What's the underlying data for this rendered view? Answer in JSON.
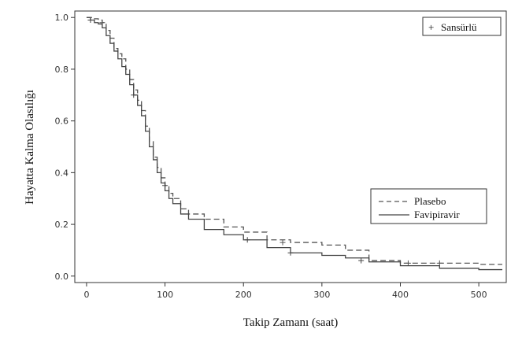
{
  "chart_data": {
    "type": "line",
    "xlabel": "Takip Zamanı (saat)",
    "ylabel": "Hayatta Kalma Olasılığı",
    "xlim": [
      -15,
      535
    ],
    "ylim": [
      -0.025,
      1.025
    ],
    "xticks": [
      0,
      100,
      200,
      300,
      400,
      500
    ],
    "xtick_labels": [
      "0",
      "100",
      "200",
      "300",
      "400",
      "500"
    ],
    "yticks": [
      0.0,
      0.2,
      0.4,
      0.6,
      0.8,
      1.0
    ],
    "ytick_labels": [
      "0.0",
      "0.2",
      "0.4",
      "0.6",
      "0.8",
      "1.0"
    ],
    "grid": false,
    "censor_legend": {
      "symbol": "+",
      "label": "Sansürlü",
      "position": "top-right"
    },
    "legend_position": "center-right",
    "series": [
      {
        "name": "Plasebo",
        "style": "dashed",
        "color": "#555555",
        "x": [
          0,
          5,
          10,
          15,
          20,
          25,
          30,
          35,
          40,
          45,
          50,
          55,
          60,
          65,
          70,
          75,
          80,
          85,
          90,
          95,
          100,
          105,
          110,
          120,
          130,
          150,
          175,
          200,
          230,
          260,
          300,
          330,
          360,
          400,
          450,
          500,
          530
        ],
        "y": [
          1.0,
          1.0,
          0.995,
          0.99,
          0.98,
          0.95,
          0.92,
          0.88,
          0.86,
          0.84,
          0.8,
          0.76,
          0.72,
          0.68,
          0.64,
          0.58,
          0.52,
          0.46,
          0.42,
          0.38,
          0.35,
          0.32,
          0.3,
          0.26,
          0.24,
          0.22,
          0.19,
          0.17,
          0.14,
          0.13,
          0.12,
          0.1,
          0.06,
          0.05,
          0.05,
          0.045,
          0.045
        ],
        "censored": [
          [
            20,
            0.98
          ],
          [
            100,
            0.35
          ],
          [
            250,
            0.13
          ],
          [
            410,
            0.05
          ],
          [
            450,
            0.05
          ]
        ]
      },
      {
        "name": "Favipiravir",
        "style": "solid",
        "color": "#444444",
        "x": [
          0,
          5,
          10,
          15,
          20,
          25,
          30,
          35,
          40,
          45,
          50,
          55,
          60,
          65,
          70,
          75,
          80,
          85,
          90,
          95,
          100,
          105,
          110,
          120,
          130,
          150,
          175,
          200,
          230,
          260,
          300,
          330,
          360,
          400,
          450,
          500,
          530
        ],
        "y": [
          1.0,
          0.99,
          0.98,
          0.975,
          0.96,
          0.93,
          0.9,
          0.87,
          0.84,
          0.81,
          0.78,
          0.74,
          0.7,
          0.66,
          0.62,
          0.56,
          0.5,
          0.45,
          0.4,
          0.36,
          0.33,
          0.3,
          0.28,
          0.24,
          0.22,
          0.18,
          0.16,
          0.14,
          0.11,
          0.09,
          0.08,
          0.07,
          0.055,
          0.04,
          0.03,
          0.025,
          0.025
        ],
        "censored": [
          [
            5,
            0.99
          ],
          [
            60,
            0.7
          ],
          [
            205,
            0.14
          ],
          [
            260,
            0.09
          ],
          [
            350,
            0.06
          ]
        ]
      }
    ]
  }
}
